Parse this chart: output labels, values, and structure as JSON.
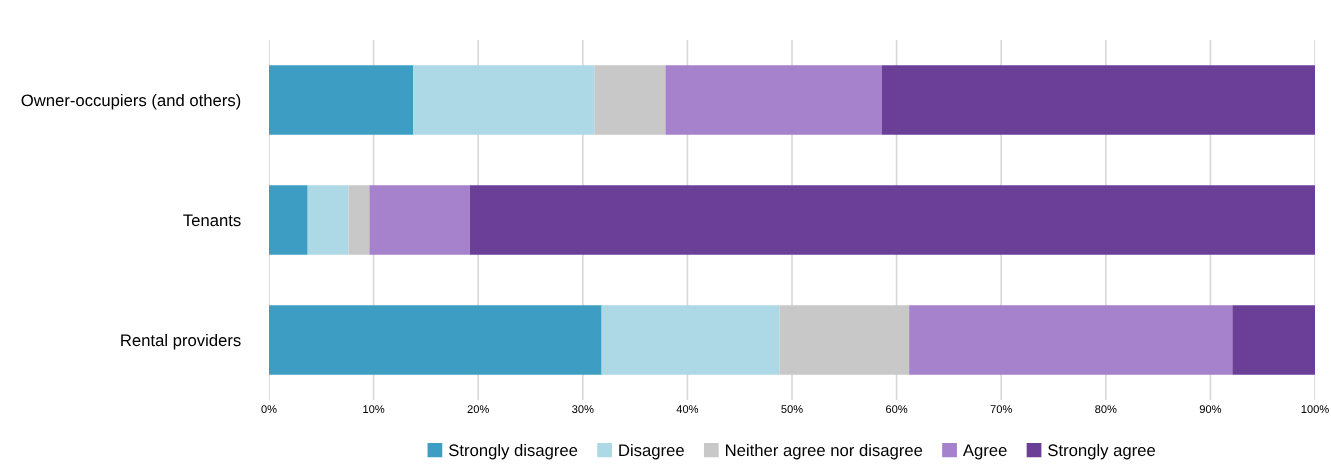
{
  "chart_data": {
    "type": "bar",
    "orientation": "horizontal",
    "stacked": true,
    "categories": [
      "Owner-occupiers (and others)",
      "Tenants",
      "Rental providers"
    ],
    "series": [
      {
        "name": "Strongly disagree",
        "color": "#3d9dc3",
        "values": [
          13.8,
          3.7,
          31.8
        ]
      },
      {
        "name": "Disagree",
        "color": "#add8e6",
        "values": [
          17.3,
          3.9,
          17.0
        ]
      },
      {
        "name": "Neither agree nor disagree",
        "color": "#c8c8c8",
        "values": [
          6.8,
          2.0,
          12.4
        ]
      },
      {
        "name": "Agree",
        "color": "#a681cc",
        "values": [
          20.7,
          9.6,
          30.9
        ]
      },
      {
        "name": "Strongly agree",
        "color": "#6b3f98",
        "values": [
          41.4,
          80.8,
          7.9
        ]
      }
    ],
    "xlim": [
      0,
      100
    ],
    "xticks": [
      {
        "value": 0,
        "label": "0%"
      },
      {
        "value": 10,
        "label": "10%"
      },
      {
        "value": 20,
        "label": "20%"
      },
      {
        "value": 30,
        "label": "30%"
      },
      {
        "value": 40,
        "label": "40%"
      },
      {
        "value": 50,
        "label": "50%"
      },
      {
        "value": 60,
        "label": "60%"
      },
      {
        "value": 70,
        "label": "70%"
      },
      {
        "value": 80,
        "label": "80%"
      },
      {
        "value": 90,
        "label": "90%"
      },
      {
        "value": 100,
        "label": "100%"
      }
    ],
    "grid": "x",
    "legend": "bottom"
  }
}
